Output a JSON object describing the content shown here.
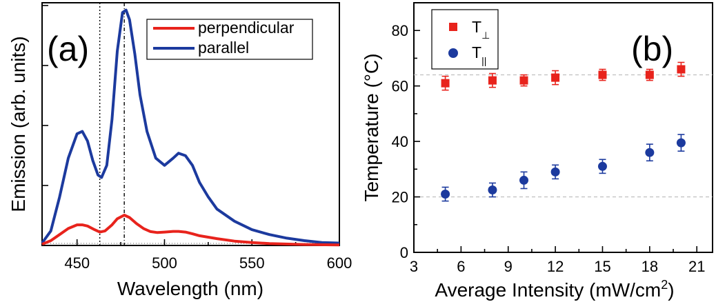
{
  "chart_data": [
    {
      "type": "line",
      "panel_label": "(a)",
      "xlabel": "Wavelength (nm)",
      "ylabel": "Emission (arb. units)",
      "xlim": [
        430,
        600
      ],
      "ylim": [
        0,
        1.0
      ],
      "xticks": [
        "450",
        "500",
        "550",
        "600"
      ],
      "y_tick_labels_shown": false,
      "legend_position": "top-right",
      "reference_lines_x": [
        463,
        477
      ],
      "series": [
        {
          "name": "parallel",
          "color": "#1c3a9e",
          "x": [
            430,
            435,
            440,
            445,
            450,
            453,
            456,
            459,
            462,
            464,
            467,
            470,
            473,
            476,
            478,
            480,
            483,
            486,
            490,
            495,
            500,
            505,
            508,
            512,
            516,
            520,
            525,
            530,
            540,
            550,
            560,
            570,
            580,
            590,
            600
          ],
          "y": [
            0.01,
            0.06,
            0.2,
            0.36,
            0.46,
            0.47,
            0.43,
            0.35,
            0.29,
            0.28,
            0.33,
            0.52,
            0.8,
            0.96,
            0.97,
            0.93,
            0.79,
            0.62,
            0.47,
            0.36,
            0.33,
            0.36,
            0.38,
            0.37,
            0.33,
            0.26,
            0.2,
            0.15,
            0.1,
            0.065,
            0.045,
            0.03,
            0.02,
            0.012,
            0.01
          ]
        },
        {
          "name": "perpendicular",
          "color": "#e8231c",
          "x": [
            430,
            435,
            440,
            445,
            450,
            453,
            456,
            460,
            463,
            466,
            470,
            473,
            477,
            480,
            484,
            488,
            492,
            496,
            500,
            505,
            508,
            512,
            516,
            520,
            530,
            540,
            550,
            560,
            580,
            600
          ],
          "y": [
            0.005,
            0.02,
            0.045,
            0.07,
            0.085,
            0.085,
            0.08,
            0.065,
            0.055,
            0.06,
            0.085,
            0.11,
            0.125,
            0.115,
            0.09,
            0.07,
            0.057,
            0.053,
            0.055,
            0.058,
            0.058,
            0.055,
            0.048,
            0.04,
            0.028,
            0.018,
            0.012,
            0.008,
            0.004,
            0.002
          ]
        }
      ]
    },
    {
      "type": "scatter",
      "panel_label": "(b)",
      "xlabel": "Average Intensity (mW/cm",
      "xlabel_superscript": "2",
      "xlabel_suffix": ")",
      "ylabel": "Temperature (°C)",
      "xlim": [
        3,
        22
      ],
      "ylim": [
        0,
        90
      ],
      "xticks": [
        "3",
        "6",
        "9",
        "12",
        "15",
        "18",
        "21"
      ],
      "yticks": [
        "0",
        "20",
        "40",
        "60",
        "80"
      ],
      "legend_position": "top-left",
      "reference_lines_y": [
        64,
        20
      ],
      "series": [
        {
          "name": "T",
          "subscript": "⊥",
          "marker": "square",
          "color": "#e8231c",
          "x": [
            5,
            8,
            10,
            12,
            15,
            18,
            20
          ],
          "y": [
            61,
            62,
            62,
            63,
            64,
            64,
            66
          ],
          "err": [
            2.5,
            2.5,
            2,
            2.5,
            2,
            2,
            2.5
          ]
        },
        {
          "name": "T",
          "subscript": "||",
          "marker": "circle",
          "color": "#1c3a9e",
          "x": [
            5,
            8,
            10,
            12,
            15,
            18,
            20
          ],
          "y": [
            21,
            22.5,
            26,
            29,
            31,
            36,
            39.5
          ],
          "err": [
            2.5,
            2.5,
            3,
            2.5,
            2.5,
            3,
            3
          ]
        }
      ]
    }
  ]
}
